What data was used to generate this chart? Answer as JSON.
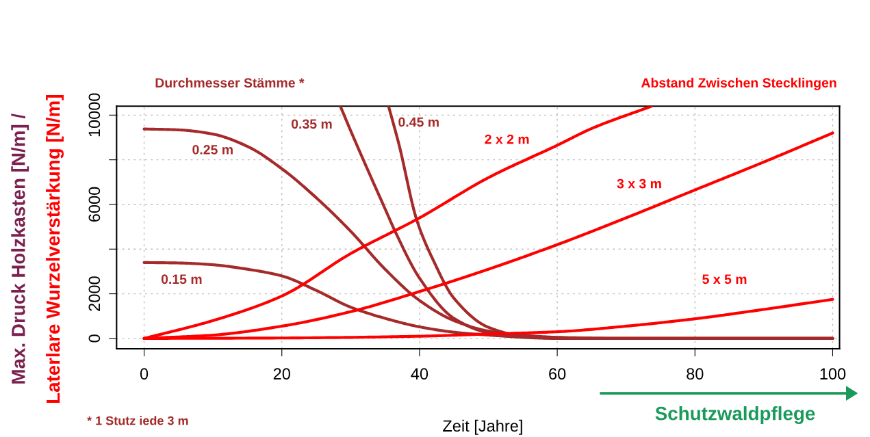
{
  "chart_data": {
    "type": "line",
    "title": "Durchmesser Stämme *",
    "subtitle": "Abstand Zwischen Stecklingen",
    "xlabel": "Zeit [Jahre]",
    "ylabel": "Max. Druck Holzkasten [N/m] /\nLaterlare Wurzelverstärkung [N/m]",
    "xlim": [
      -4,
      101
    ],
    "ylim": [
      -460,
      10400
    ],
    "xticks": [
      0,
      20,
      40,
      60,
      80,
      100
    ],
    "yticks": [
      0,
      2000,
      {
        "value": 4000,
        "label": null
      },
      6000,
      {
        "value": 8000,
        "label": null
      },
      10000
    ],
    "grid": true,
    "line_style": "solid",
    "marker": "none",
    "series": [
      {
        "name": "0.15 m",
        "color": "#a52a2a",
        "x": [
          0,
          5,
          10,
          15,
          20,
          25,
          30,
          35,
          40,
          45,
          50,
          55,
          60,
          70,
          80,
          100
        ],
        "values": [
          3400,
          3380,
          3300,
          3100,
          2800,
          2150,
          1400,
          900,
          520,
          280,
          150,
          60,
          20,
          0,
          0,
          0
        ]
      },
      {
        "name": "0.25 m",
        "color": "#a52a2a",
        "x": [
          0,
          5,
          10,
          15,
          20,
          25,
          30,
          35,
          40,
          45,
          50,
          55,
          60,
          70,
          80,
          100
        ],
        "values": [
          9380,
          9340,
          9150,
          8600,
          7600,
          6300,
          4800,
          3100,
          1700,
          800,
          330,
          150,
          50,
          0,
          0,
          0
        ]
      },
      {
        "name": "0.35 m",
        "color": "#a52a2a",
        "x": [
          28.5,
          30,
          35,
          36.6,
          40,
          45,
          50,
          55,
          60,
          70,
          80,
          100
        ],
        "values": [
          10400,
          9300,
          5800,
          4700,
          2700,
          900,
          250,
          50,
          0,
          0,
          0,
          0
        ]
      },
      {
        "name": "0.45 m",
        "color": "#a52a2a",
        "x": [
          35.5,
          37,
          39.6,
          42,
          45,
          50,
          55,
          60,
          65,
          80,
          100
        ],
        "values": [
          10400,
          8700,
          5300,
          3500,
          1800,
          500,
          100,
          10,
          0,
          0,
          0
        ]
      },
      {
        "name": "2 x 2 m",
        "color": "#ff0000",
        "x": [
          0,
          10,
          20,
          30,
          40,
          50,
          60,
          65,
          73.7
        ],
        "values": [
          0,
          800,
          1900,
          3800,
          5400,
          7200,
          8650,
          9400,
          10400
        ]
      },
      {
        "name": "3 x 3 m",
        "color": "#ff0000",
        "x": [
          0,
          10,
          20,
          30,
          40,
          50,
          60,
          70,
          80,
          90,
          100
        ],
        "values": [
          0,
          150,
          550,
          1200,
          2100,
          3100,
          4200,
          5400,
          6650,
          7900,
          9200
        ]
      },
      {
        "name": "5 x 5 m",
        "color": "#ff0000",
        "x": [
          0,
          20,
          40,
          50,
          60,
          70,
          80,
          90,
          100
        ],
        "values": [
          0,
          20,
          100,
          200,
          300,
          550,
          880,
          1300,
          1750
        ]
      }
    ],
    "annotations": [
      "* 1 Stutz iede 3 m",
      "Schutzwaldpflege"
    ]
  }
}
